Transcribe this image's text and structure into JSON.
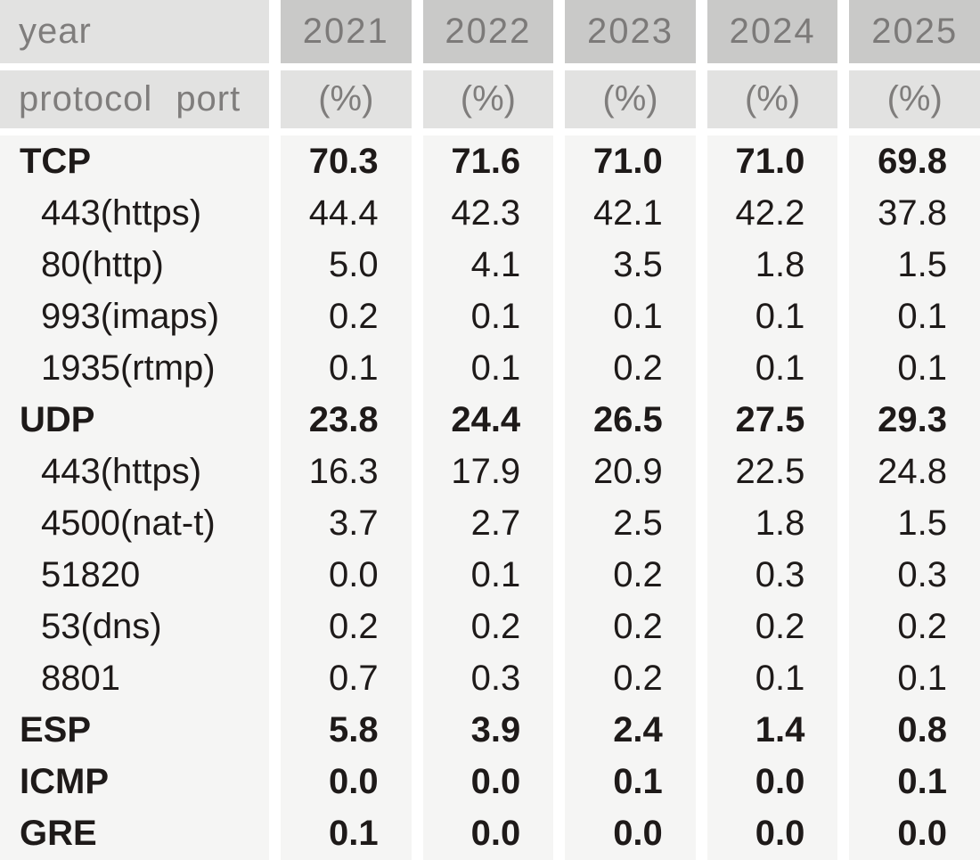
{
  "chart_data": {
    "type": "table",
    "header": {
      "year_label": "year",
      "protocol_label": "protocol",
      "port_label": "port",
      "years": [
        "2021",
        "2022",
        "2023",
        "2024",
        "2025"
      ],
      "unit_label": "(%)"
    },
    "rows": [
      {
        "label": "TCP",
        "level": "protocol",
        "values": [
          "70.3",
          "71.6",
          "71.0",
          "71.0",
          "69.8"
        ]
      },
      {
        "label": "443(https)",
        "level": "port",
        "values": [
          "44.4",
          "42.3",
          "42.1",
          "42.2",
          "37.8"
        ]
      },
      {
        "label": "80(http)",
        "level": "port",
        "values": [
          "5.0",
          "4.1",
          "3.5",
          "1.8",
          "1.5"
        ]
      },
      {
        "label": "993(imaps)",
        "level": "port",
        "values": [
          "0.2",
          "0.1",
          "0.1",
          "0.1",
          "0.1"
        ]
      },
      {
        "label": "1935(rtmp)",
        "level": "port",
        "values": [
          "0.1",
          "0.1",
          "0.2",
          "0.1",
          "0.1"
        ]
      },
      {
        "label": "UDP",
        "level": "protocol",
        "values": [
          "23.8",
          "24.4",
          "26.5",
          "27.5",
          "29.3"
        ]
      },
      {
        "label": "443(https)",
        "level": "port",
        "values": [
          "16.3",
          "17.9",
          "20.9",
          "22.5",
          "24.8"
        ]
      },
      {
        "label": "4500(nat-t)",
        "level": "port",
        "values": [
          "3.7",
          "2.7",
          "2.5",
          "1.8",
          "1.5"
        ]
      },
      {
        "label": "51820",
        "level": "port",
        "values": [
          "0.0",
          "0.1",
          "0.2",
          "0.3",
          "0.3"
        ]
      },
      {
        "label": "53(dns)",
        "level": "port",
        "values": [
          "0.2",
          "0.2",
          "0.2",
          "0.2",
          "0.2"
        ]
      },
      {
        "label": "8801",
        "level": "port",
        "values": [
          "0.7",
          "0.3",
          "0.2",
          "0.1",
          "0.1"
        ]
      },
      {
        "label": "ESP",
        "level": "protocol",
        "values": [
          "5.8",
          "3.9",
          "2.4",
          "1.4",
          "0.8"
        ]
      },
      {
        "label": "ICMP",
        "level": "protocol",
        "values": [
          "0.0",
          "0.0",
          "0.1",
          "0.0",
          "0.1"
        ]
      },
      {
        "label": "GRE",
        "level": "protocol",
        "values": [
          "0.1",
          "0.0",
          "0.0",
          "0.0",
          "0.0"
        ]
      }
    ],
    "layout": {
      "year_header_bg": "#c9c9c8",
      "subheader_bg": "#e2e2e1",
      "body_bg": "#f5f5f4",
      "gap_color": "#ffffff",
      "header_text_color": "#7f7d7c",
      "body_text_color": "#1e1a19"
    }
  }
}
